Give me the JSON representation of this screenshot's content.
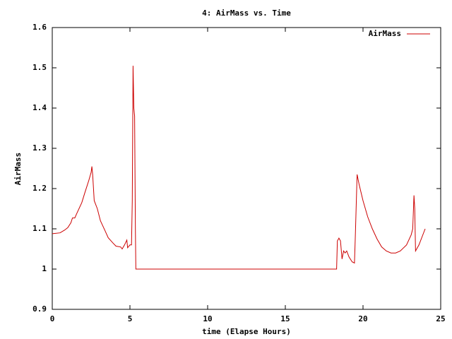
{
  "chart_data": {
    "type": "line",
    "title": "4: AirMass vs. Time",
    "x_label": "time (Elapse Hours)",
    "y_label": "AirMass",
    "xlim": [
      0,
      25
    ],
    "xticks": [
      0,
      5,
      10,
      15,
      20,
      25
    ],
    "ylim": [
      0.9,
      1.6
    ],
    "yticks": [
      0.9,
      1,
      1.1,
      1.2,
      1.3,
      1.4,
      1.5,
      1.6
    ],
    "legend": "top-right",
    "series": [
      {
        "name": "AirMass",
        "color": "#cc0000",
        "x": [
          0,
          0.5,
          0.8,
          1.0,
          1.2,
          1.3,
          1.45,
          1.6,
          1.9,
          2.1,
          2.35,
          2.5,
          2.55,
          2.6,
          2.7,
          2.9,
          3.1,
          3.4,
          3.6,
          3.9,
          4.1,
          4.4,
          4.5,
          4.65,
          4.8,
          4.85,
          5.0,
          5.1,
          5.15,
          5.2,
          5.25,
          5.3,
          5.35,
          5.38,
          18.3,
          18.35,
          18.45,
          18.55,
          18.65,
          18.75,
          18.85,
          18.95,
          19.1,
          19.3,
          19.45,
          19.5,
          19.62,
          19.75,
          20.0,
          20.3,
          20.6,
          20.9,
          21.2,
          21.5,
          21.8,
          22.1,
          22.4,
          22.8,
          23.1,
          23.2,
          23.28,
          23.33,
          23.38,
          23.6,
          24.0
        ],
        "values": [
          1.088,
          1.09,
          1.097,
          1.103,
          1.115,
          1.127,
          1.127,
          1.14,
          1.165,
          1.19,
          1.22,
          1.24,
          1.255,
          1.235,
          1.17,
          1.15,
          1.12,
          1.095,
          1.078,
          1.065,
          1.057,
          1.055,
          1.05,
          1.06,
          1.072,
          1.053,
          1.06,
          1.06,
          1.17,
          1.505,
          1.4,
          1.38,
          1.1,
          1.0,
          1.0,
          1.07,
          1.077,
          1.07,
          1.025,
          1.045,
          1.04,
          1.045,
          1.03,
          1.018,
          1.015,
          1.075,
          1.235,
          1.21,
          1.17,
          1.13,
          1.1,
          1.075,
          1.055,
          1.045,
          1.04,
          1.04,
          1.045,
          1.06,
          1.085,
          1.1,
          1.183,
          1.15,
          1.045,
          1.06,
          1.1
        ]
      }
    ]
  }
}
